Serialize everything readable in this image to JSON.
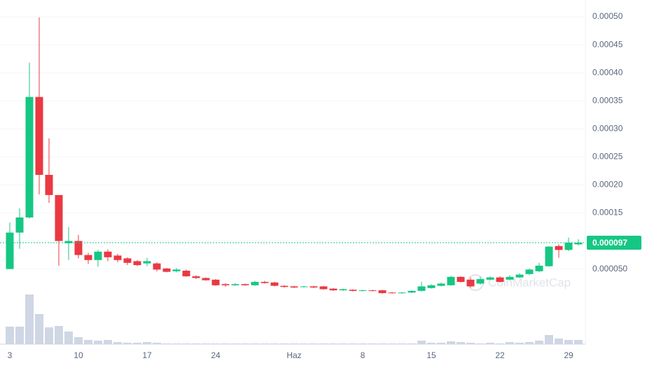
{
  "chart_data": {
    "type": "candlestick",
    "categories": [
      "3",
      null,
      null,
      null,
      null,
      null,
      null,
      "10",
      null,
      null,
      null,
      null,
      null,
      null,
      "17",
      null,
      null,
      null,
      null,
      null,
      null,
      "24",
      null,
      null,
      null,
      null,
      null,
      null,
      null,
      "Haz",
      null,
      null,
      null,
      null,
      null,
      null,
      "8",
      null,
      null,
      null,
      null,
      null,
      null,
      "15",
      null,
      null,
      null,
      null,
      null,
      null,
      "22",
      null,
      null,
      null,
      null,
      null,
      null,
      "29",
      null
    ],
    "up_color": "#16c784",
    "down_color": "#ea3943",
    "volume_color": "#cfd6e4",
    "open": [
      5e-05,
      0.000115,
      0.000142,
      0.000357,
      0.000218,
      0.000182,
      9.6e-05,
      0.0001,
      7.5e-05,
      6.6e-05,
      8.1e-05,
      7.4e-05,
      6.9e-05,
      6.4e-05,
      6e-05,
      6e-05,
      5.1e-05,
      4.6e-05,
      4.7e-05,
      3.7e-05,
      3.4e-05,
      3.1e-05,
      2.3e-05,
      2.1e-05,
      2.3e-05,
      2.1e-05,
      2.7e-05,
      2.6e-05,
      2e-05,
      1.9e-05,
      1.8e-05,
      1.9e-05,
      1.9e-05,
      1.5e-05,
      1.2e-05,
      1.3e-05,
      1.1e-05,
      1.2e-05,
      1.2e-05,
      8e-06,
      7e-06,
      8e-06,
      1.1e-05,
      1.6e-05,
      2e-05,
      2.1e-05,
      3.6e-05,
      3.1e-05,
      2.4e-05,
      3.1e-05,
      3.5e-05,
      3.1e-05,
      3.5e-05,
      4.1e-05,
      4.6e-05,
      5.5e-05,
      9.1e-05,
      8.4e-05,
      9.4e-05
    ],
    "high": [
      0.000133,
      0.000158,
      0.000418,
      0.000499,
      0.000283,
      0.000182,
      0.000125,
      0.000111,
      7.9e-05,
      8.4e-05,
      8.5e-05,
      7.7e-05,
      7.1e-05,
      6.6e-05,
      7e-05,
      6.2e-05,
      5.2e-05,
      5.2e-05,
      4.9e-05,
      3.9e-05,
      3.5e-05,
      3.2e-05,
      2.5e-05,
      2.5e-05,
      2.4e-05,
      2.9e-05,
      2.9e-05,
      2.7e-05,
      2.1e-05,
      2e-05,
      2e-05,
      2e-05,
      2e-05,
      1.6e-05,
      1.5e-05,
      1.4e-05,
      1.3e-05,
      1.3e-05,
      1.3e-05,
      9e-06,
      9e-06,
      1.2e-05,
      2.7e-05,
      2.3e-05,
      2.6e-05,
      3.8e-05,
      3.7e-05,
      3.5e-05,
      3.6e-05,
      3.7e-05,
      3.7e-05,
      3.9e-05,
      4.2e-05,
      5.1e-05,
      6.1e-05,
      9.1e-05,
      9.4e-05,
      0.000106,
      0.000103
    ],
    "low": [
      5e-05,
      8.6e-05,
      0.00014,
      0.000183,
      0.000168,
      5.6e-05,
      6.6e-05,
      6.9e-05,
      5.9e-05,
      5.4e-05,
      6.4e-05,
      6.2e-05,
      5.7e-05,
      5.5e-05,
      5.5e-05,
      4.6e-05,
      4.4e-05,
      4.4e-05,
      3.6e-05,
      3.2e-05,
      2.9e-05,
      2e-05,
      1.8e-05,
      2e-05,
      2e-05,
      2e-05,
      2.4e-05,
      1.9e-05,
      1.7e-05,
      1.6e-05,
      1.7e-05,
      1.6e-05,
      1.3e-05,
      1.1e-05,
      1.1e-05,
      1e-05,
      1e-05,
      1e-05,
      6e-06,
      6e-06,
      6e-06,
      7e-06,
      1e-05,
      1.5e-05,
      1.9e-05,
      2e-05,
      2.6e-05,
      1.7e-05,
      2.2e-05,
      3e-05,
      2.6e-05,
      3e-05,
      3.4e-05,
      3.9e-05,
      4.4e-05,
      5.4e-05,
      7e-05,
      8.2e-05,
      9.2e-05
    ],
    "close": [
      0.000115,
      0.000142,
      0.000357,
      0.000218,
      0.000182,
      0.0001,
      0.0001,
      7.5e-05,
      6.6e-05,
      8.1e-05,
      7.1e-05,
      6.6e-05,
      6.1e-05,
      5.7e-05,
      6.4e-05,
      4.9e-05,
      4.5e-05,
      4.9e-05,
      3.7e-05,
      3.4e-05,
      3e-05,
      2.1e-05,
      2.1e-05,
      2.3e-05,
      2.1e-05,
      2.7e-05,
      2.5e-05,
      2e-05,
      1.8e-05,
      1.7e-05,
      1.9e-05,
      1.7e-05,
      1.4e-05,
      1.2e-05,
      1.4e-05,
      1.1e-05,
      1.2e-05,
      1.1e-05,
      7e-06,
      7e-06,
      8e-06,
      1.1e-05,
      1.9e-05,
      2.1e-05,
      2.4e-05,
      3.6e-05,
      2.7e-05,
      1.9e-05,
      3.2e-05,
      3.5e-05,
      2.7e-05,
      3.6e-05,
      4e-05,
      4.9e-05,
      5.6e-05,
      9e-05,
      8.4e-05,
      9.7e-05,
      9.7e-05
    ],
    "volume": [
      25,
      25,
      71,
      43,
      24,
      26,
      18,
      10,
      6,
      5,
      6,
      3,
      2,
      2,
      3,
      2,
      1,
      1,
      1,
      1,
      1,
      1,
      1,
      1,
      1,
      1,
      1,
      1,
      1,
      1,
      1,
      1,
      1,
      1,
      1,
      1,
      1,
      1,
      1,
      1,
      1,
      1,
      5,
      2,
      2,
      4,
      3,
      2,
      1,
      2,
      1,
      3,
      2,
      3,
      5,
      13,
      8,
      6,
      6
    ],
    "ylim": [
      -8.4e-05,
      0.00053
    ],
    "yticks": [
      {
        "value": 5e-05,
        "label": "0.000050"
      },
      {
        "value": 0.0001,
        "label": "0.00010"
      },
      {
        "value": 0.00015,
        "label": "0.00015"
      },
      {
        "value": 0.0002,
        "label": "0.00020"
      },
      {
        "value": 0.00025,
        "label": "0.00025"
      },
      {
        "value": 0.0003,
        "label": "0.00030"
      },
      {
        "value": 0.00035,
        "label": "0.00035"
      },
      {
        "value": 0.0004,
        "label": "0.00040"
      },
      {
        "value": 0.00045,
        "label": "0.00045"
      },
      {
        "value": 0.0005,
        "label": "0.00050"
      }
    ],
    "grid": true,
    "last_price": {
      "value": 9.7e-05,
      "label": "0.000097"
    },
    "watermark": "CoinMarketCap"
  }
}
